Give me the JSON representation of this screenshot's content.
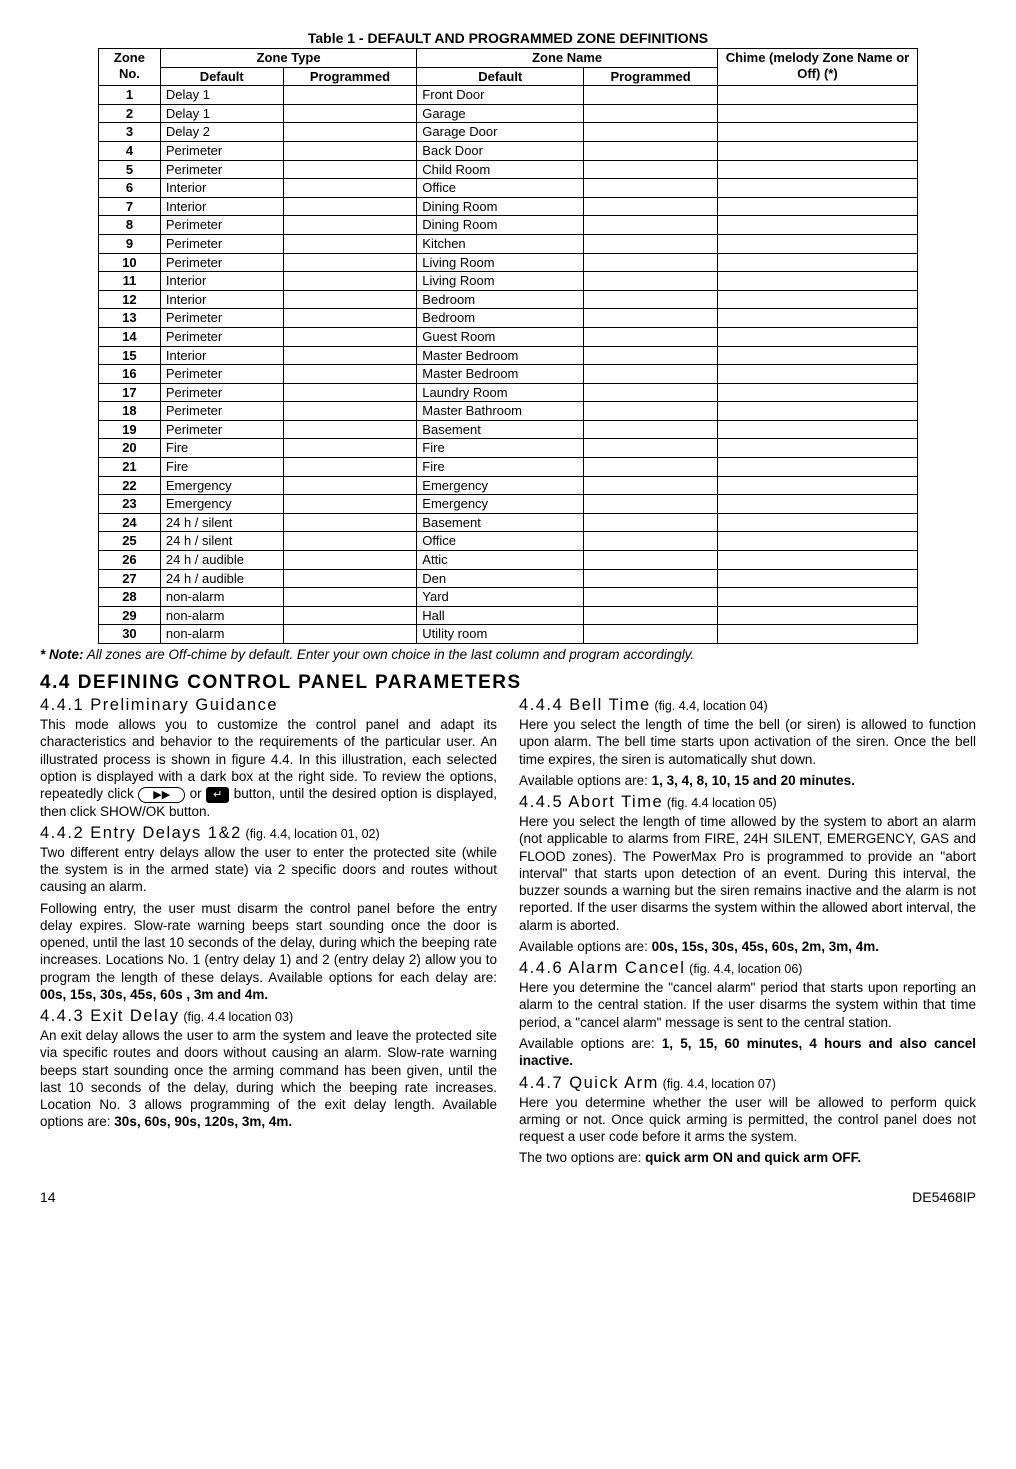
{
  "table": {
    "title": "Table 1 - DEFAULT AND PROGRAMMED ZONE DEFINITIONS",
    "headers": {
      "zoneNo": "Zone No.",
      "zoneType": "Zone Type",
      "zoneName": "Zone Name",
      "chime": "Chime (melody Zone Name or Off) (*)",
      "default": "Default",
      "programmed": "Programmed"
    },
    "rows": [
      {
        "no": "1",
        "typeDefault": "Delay 1",
        "nameDefault": "Front Door"
      },
      {
        "no": "2",
        "typeDefault": "Delay 1",
        "nameDefault": "Garage"
      },
      {
        "no": "3",
        "typeDefault": "Delay 2",
        "nameDefault": "Garage Door"
      },
      {
        "no": "4",
        "typeDefault": "Perimeter",
        "nameDefault": "Back Door"
      },
      {
        "no": "5",
        "typeDefault": "Perimeter",
        "nameDefault": "Child Room"
      },
      {
        "no": "6",
        "typeDefault": "Interior",
        "nameDefault": "Office"
      },
      {
        "no": "7",
        "typeDefault": "Interior",
        "nameDefault": "Dining Room"
      },
      {
        "no": "8",
        "typeDefault": "Perimeter",
        "nameDefault": "Dining Room"
      },
      {
        "no": "9",
        "typeDefault": "Perimeter",
        "nameDefault": "Kitchen"
      },
      {
        "no": "10",
        "typeDefault": "Perimeter",
        "nameDefault": "Living Room"
      },
      {
        "no": "11",
        "typeDefault": "Interior",
        "nameDefault": "Living Room"
      },
      {
        "no": "12",
        "typeDefault": "Interior",
        "nameDefault": "Bedroom"
      },
      {
        "no": "13",
        "typeDefault": "Perimeter",
        "nameDefault": "Bedroom"
      },
      {
        "no": "14",
        "typeDefault": "Perimeter",
        "nameDefault": "Guest Room"
      },
      {
        "no": "15",
        "typeDefault": "Interior",
        "nameDefault": "Master Bedroom"
      },
      {
        "no": "16",
        "typeDefault": "Perimeter",
        "nameDefault": "Master Bedroom"
      },
      {
        "no": "17",
        "typeDefault": "Perimeter",
        "nameDefault": "Laundry Room"
      },
      {
        "no": "18",
        "typeDefault": "Perimeter",
        "nameDefault": "Master Bathroom"
      },
      {
        "no": "19",
        "typeDefault": "Perimeter",
        "nameDefault": "Basement"
      },
      {
        "no": "20",
        "typeDefault": "Fire",
        "nameDefault": "Fire"
      },
      {
        "no": "21",
        "typeDefault": "Fire",
        "nameDefault": "Fire"
      },
      {
        "no": "22",
        "typeDefault": "Emergency",
        "nameDefault": "Emergency"
      },
      {
        "no": "23",
        "typeDefault": "Emergency",
        "nameDefault": "Emergency"
      },
      {
        "no": "24",
        "typeDefault": "24 h / silent",
        "nameDefault": "Basement"
      },
      {
        "no": "25",
        "typeDefault": "24 h / silent",
        "nameDefault": "Office"
      },
      {
        "no": "26",
        "typeDefault": "24 h / audible",
        "nameDefault": "Attic"
      },
      {
        "no": "27",
        "typeDefault": "24 h / audible",
        "nameDefault": "Den"
      },
      {
        "no": "28",
        "typeDefault": "non-alarm",
        "nameDefault": "Yard"
      },
      {
        "no": "29",
        "typeDefault": "non-alarm",
        "nameDefault": "Hall"
      },
      {
        "no": "30",
        "typeDefault": "non-alarm",
        "nameDefault": "Utility room"
      }
    ]
  },
  "note": "All zones are Off-chime by default. Enter your own choice in the last column and program accordingly.",
  "noteLabel": "* Note:",
  "sectionTitle": "4.4 DEFINING CONTROL PANEL PARAMETERS",
  "s441": {
    "title": "4.4.1 Preliminary Guidance",
    "p1": "This mode allows you to customize the control panel and adapt its characteristics and behavior to the requirements of the particular user. An illustrated process is shown in figure 4.4. In this illustration, each selected option is displayed with a dark box at the right side. To review the options, repeatedly click ",
    "p1b": " or ",
    "p1c": " button, until the desired option is displayed, then click SHOW/OK button."
  },
  "s442": {
    "title": "4.4.2 Entry Delays 1&2",
    "fig": "(fig. 4.4, location 01, 02)",
    "p1": "Two different entry delays allow the user to enter the protected site (while the system is in the armed state) via 2 specific doors and routes without causing an alarm.",
    "p2a": "Following entry, the user must disarm the control panel before the entry delay expires. Slow-rate warning beeps start sounding once the door is opened, until the last 10 seconds of the delay, during which the beeping rate increases. Locations No. 1 (entry delay 1) and 2 (entry delay 2) allow you to program the length of these delays. Available options for each delay are: ",
    "opts": "00s, 15s, 30s, 45s, 60s , 3m and 4m."
  },
  "s443": {
    "title": "4.4.3 Exit Delay",
    "fig": "(fig. 4.4 location 03)",
    "p1a": "An exit delay allows the user to arm the system and leave the protected site via specific routes and doors without causing an alarm. Slow-rate warning beeps start sounding once the arming command has been given, until the last 10 seconds of the delay, during which the beeping rate increases. Location No. 3 allows programming of the exit delay length. Available options are: ",
    "opts": "30s, 60s, 90s, 120s, 3m, 4m."
  },
  "s444": {
    "title": "4.4.4 Bell Time",
    "fig": "(fig. 4.4, location 04)",
    "p1": "Here you select the length of time the bell (or siren) is allowed to function upon alarm. The bell time starts upon activation of the siren. Once the bell time expires, the siren is automatically shut down.",
    "p2a": "Available options are: ",
    "opts": "1, 3, 4, 8, 10, 15 and 20 minutes."
  },
  "s445": {
    "title": "4.4.5 Abort Time",
    "fig": "(fig. 4.4 location 05)",
    "p1": "Here you select the length of time allowed by the system to abort an alarm (not applicable to alarms from FIRE, 24H SILENT, EMERGENCY, GAS and FLOOD zones). The PowerMax Pro is programmed to provide an \"abort interval\" that starts upon detection of an event. During this interval, the buzzer sounds a warning but the siren remains inactive and the alarm is not reported. If the user disarms the system within the allowed abort interval, the alarm is aborted.",
    "p2a": "Available options are: ",
    "opts": "00s, 15s, 30s, 45s, 60s, 2m, 3m, 4m."
  },
  "s446": {
    "title": "4.4.6 Alarm Cancel",
    "fig": "(fig. 4.4, location 06)",
    "p1": "Here you determine the \"cancel alarm\" period that starts upon reporting an alarm to the central station. If the user disarms the system within that time period, a \"cancel alarm\" message is sent to the central station.",
    "p2a": "Available options are: ",
    "opts": "1, 5, 15, 60 minutes, 4 hours and also cancel inactive."
  },
  "s447": {
    "title": "4.4.7 Quick Arm",
    "fig": "(fig. 4.4, location 07)",
    "p1": "Here you determine whether the user will be allowed to perform quick arming or not. Once quick arming is permitted, the control panel does not request a user code before it arms the system.",
    "p2a": "The two options are: ",
    "opts": "quick arm ON and quick arm OFF."
  },
  "footer": {
    "page": "14",
    "doc": "DE5468IP"
  }
}
